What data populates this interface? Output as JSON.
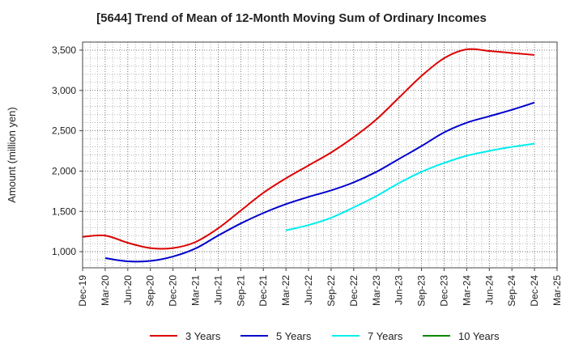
{
  "chart_data": {
    "type": "line",
    "title": "[5644]  Trend of Mean of 12-Month Moving Sum of Ordinary Incomes",
    "xlabel": "",
    "ylabel": "Amount (million yen)",
    "ylim": [
      800,
      3600
    ],
    "yticks": [
      1000,
      1500,
      2000,
      2500,
      3000,
      3500
    ],
    "ytick_labels": [
      "1,000",
      "1,500",
      "2,000",
      "2,500",
      "3,000",
      "3,500"
    ],
    "xtick_labels": [
      "Dec-19",
      "Mar-20",
      "Jun-20",
      "Sep-20",
      "Dec-20",
      "Mar-21",
      "Jun-21",
      "Sep-21",
      "Dec-21",
      "Mar-22",
      "Jun-22",
      "Sep-22",
      "Dec-22",
      "Mar-23",
      "Jun-23",
      "Sep-23",
      "Dec-23",
      "Mar-24",
      "Jun-24",
      "Sep-24",
      "Dec-24",
      "Mar-25"
    ],
    "grid": true,
    "legend_position": "bottom",
    "series": [
      {
        "name": "3 Years",
        "color": "#dd0000",
        "start_index": 0,
        "values": [
          1185,
          1200,
          1110,
          1045,
          1045,
          1120,
          1290,
          1510,
          1730,
          1910,
          2070,
          2230,
          2420,
          2640,
          2910,
          3180,
          3400,
          3510,
          3490,
          3465,
          3440
        ]
      },
      {
        "name": "5 Years",
        "color": "#0000cc",
        "start_index": 1,
        "values": [
          920,
          880,
          885,
          940,
          1040,
          1200,
          1350,
          1480,
          1590,
          1680,
          1760,
          1860,
          1990,
          2150,
          2310,
          2480,
          2600,
          2680,
          2760,
          2850
        ]
      },
      {
        "name": "7 Years",
        "color": "#00eeee",
        "start_index": 9,
        "values": [
          1265,
          1330,
          1420,
          1550,
          1690,
          1850,
          1990,
          2100,
          2190,
          2250,
          2300,
          2340
        ]
      },
      {
        "name": "10 Years",
        "color": "#008800",
        "start_index": 0,
        "values": []
      }
    ]
  }
}
